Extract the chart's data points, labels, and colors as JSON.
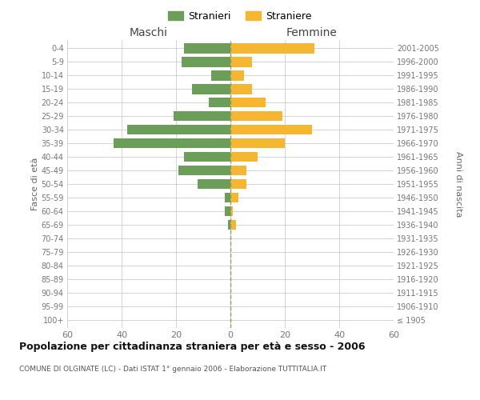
{
  "age_groups": [
    "100+",
    "95-99",
    "90-94",
    "85-89",
    "80-84",
    "75-79",
    "70-74",
    "65-69",
    "60-64",
    "55-59",
    "50-54",
    "45-49",
    "40-44",
    "35-39",
    "30-34",
    "25-29",
    "20-24",
    "15-19",
    "10-14",
    "5-9",
    "0-4"
  ],
  "birth_years": [
    "≤ 1905",
    "1906-1910",
    "1911-1915",
    "1916-1920",
    "1921-1925",
    "1926-1930",
    "1931-1935",
    "1936-1940",
    "1941-1945",
    "1946-1950",
    "1951-1955",
    "1956-1960",
    "1961-1965",
    "1966-1970",
    "1971-1975",
    "1976-1980",
    "1981-1985",
    "1986-1990",
    "1991-1995",
    "1996-2000",
    "2001-2005"
  ],
  "males": [
    0,
    0,
    0,
    0,
    0,
    0,
    0,
    1,
    2,
    2,
    12,
    19,
    17,
    43,
    38,
    21,
    8,
    14,
    7,
    18,
    17
  ],
  "females": [
    0,
    0,
    0,
    0,
    0,
    0,
    0,
    2,
    1,
    3,
    6,
    6,
    10,
    20,
    30,
    19,
    13,
    8,
    5,
    8,
    31
  ],
  "male_color": "#6a9e59",
  "female_color": "#f5b731",
  "background_color": "#ffffff",
  "grid_color": "#cccccc",
  "title": "Popolazione per cittadinanza straniera per età e sesso - 2006",
  "subtitle": "COMUNE DI OLGINATE (LC) - Dati ISTAT 1° gennaio 2006 - Elaborazione TUTTITALIA.IT",
  "label_maschi": "Maschi",
  "label_femmine": "Femmine",
  "ylabel_left": "Fasce di età",
  "ylabel_right": "Anni di nascita",
  "legend_male": "Stranieri",
  "legend_female": "Straniere",
  "xlim": 60,
  "bar_height": 0.75
}
